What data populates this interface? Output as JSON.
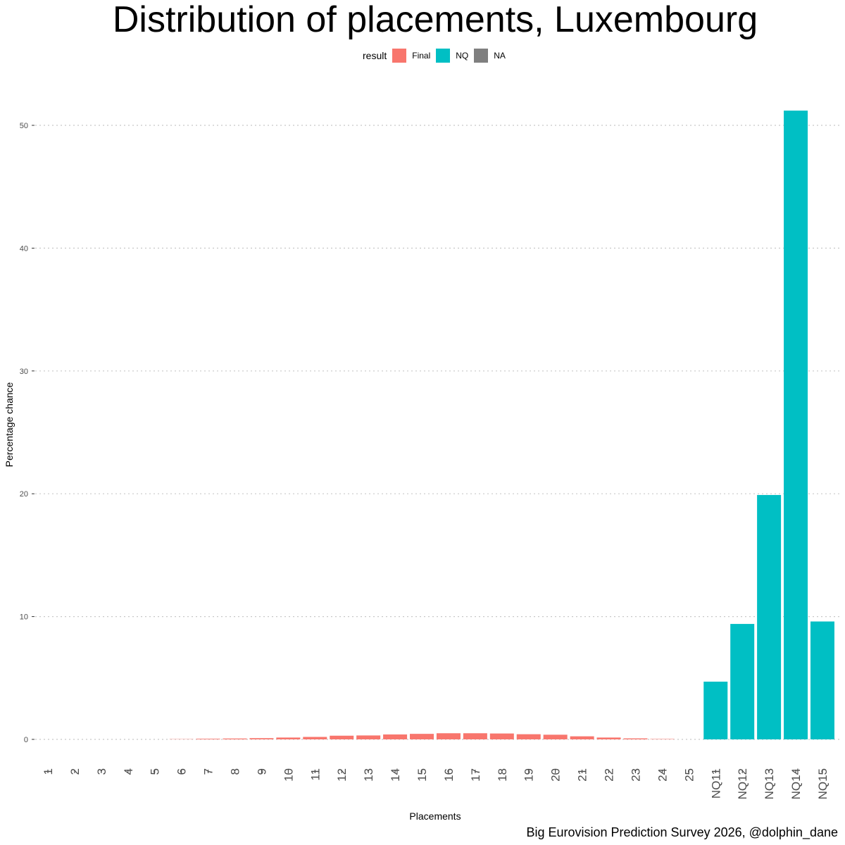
{
  "chart_data": {
    "type": "bar",
    "title": "Distribution of placements, Luxembourg",
    "xlabel": "Placements",
    "ylabel": "Percentage chance",
    "caption": "Big Eurovision Prediction Survey 2026, @dolphin_dane",
    "legend": {
      "title": "result",
      "position": "top",
      "entries": [
        {
          "label": "Final",
          "color": "#F8766D"
        },
        {
          "label": "NQ",
          "color": "#00BFC4"
        },
        {
          "label": "NA",
          "color": "#7F7F7F"
        }
      ]
    },
    "categories": [
      "1",
      "2",
      "3",
      "4",
      "5",
      "6",
      "7",
      "8",
      "9",
      "10",
      "11",
      "12",
      "13",
      "14",
      "15",
      "16",
      "17",
      "18",
      "19",
      "20",
      "21",
      "22",
      "23",
      "24",
      "25",
      "NQ11",
      "NQ12",
      "NQ13",
      "NQ14",
      "NQ15"
    ],
    "values": [
      0,
      0,
      0,
      0,
      0,
      0.02,
      0.05,
      0.07,
      0.1,
      0.15,
      0.2,
      0.3,
      0.32,
      0.4,
      0.45,
      0.5,
      0.5,
      0.48,
      0.42,
      0.38,
      0.25,
      0.15,
      0.08,
      0.03,
      0,
      4.7,
      9.4,
      19.9,
      51.2,
      9.6
    ],
    "groups": [
      "Final",
      "Final",
      "Final",
      "Final",
      "Final",
      "Final",
      "Final",
      "Final",
      "Final",
      "Final",
      "Final",
      "Final",
      "Final",
      "Final",
      "Final",
      "Final",
      "Final",
      "Final",
      "Final",
      "Final",
      "Final",
      "Final",
      "Final",
      "Final",
      "Final",
      "NQ",
      "NQ",
      "NQ",
      "NQ",
      "NQ"
    ],
    "yticks": [
      0,
      10,
      20,
      30,
      40,
      50
    ],
    "ylim": [
      0,
      53
    ],
    "grid": "horizontal dotted"
  }
}
